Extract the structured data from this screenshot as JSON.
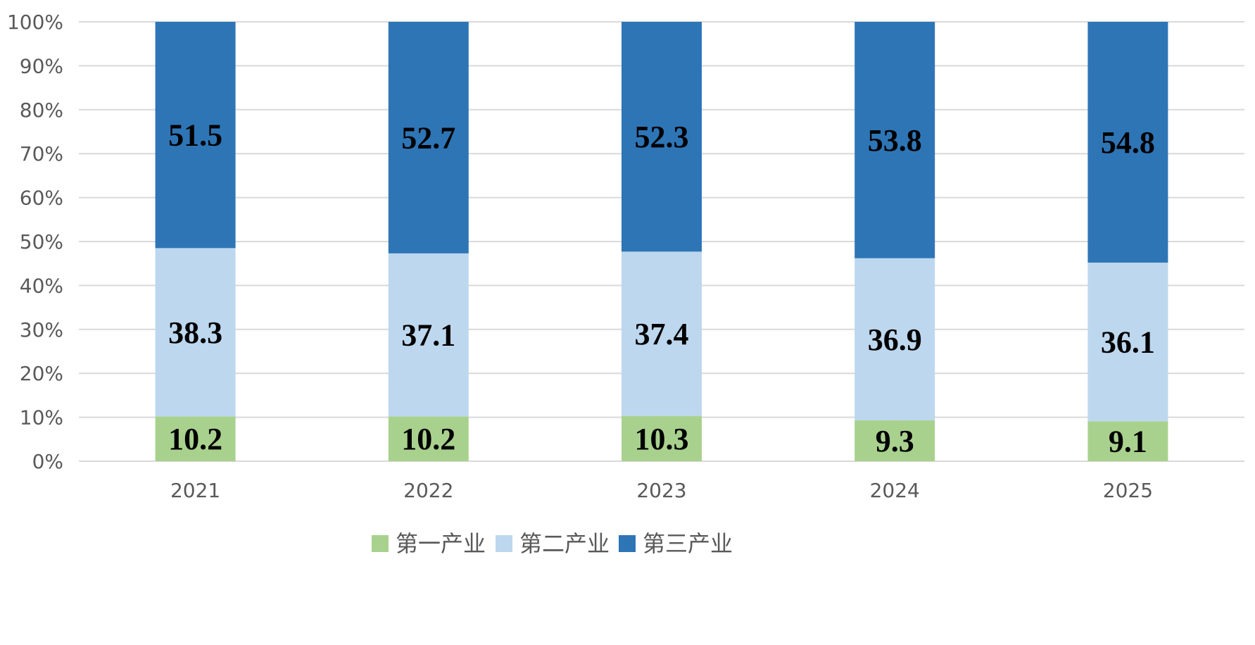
{
  "chart_data": {
    "type": "bar",
    "stacked": true,
    "percent_stacked": true,
    "categories": [
      "2021",
      "2022",
      "2023",
      "2024",
      "2025"
    ],
    "series": [
      {
        "name": "第一产业",
        "values": [
          10.2,
          10.2,
          10.3,
          9.3,
          9.1
        ],
        "color": "#a9d18e"
      },
      {
        "name": "第二产业",
        "values": [
          38.3,
          37.1,
          37.4,
          36.9,
          36.1
        ],
        "color": "#bdd7ee"
      },
      {
        "name": "第三产业",
        "values": [
          51.5,
          52.7,
          52.3,
          53.8,
          54.8
        ],
        "color": "#2e75b6"
      }
    ],
    "y_ticks": [
      "0%",
      "10%",
      "20%",
      "30%",
      "40%",
      "50%",
      "60%",
      "70%",
      "80%",
      "90%",
      "100%"
    ],
    "ylim": [
      0,
      100
    ],
    "grid": true,
    "legend_position": "bottom-center",
    "data_labels": true
  }
}
